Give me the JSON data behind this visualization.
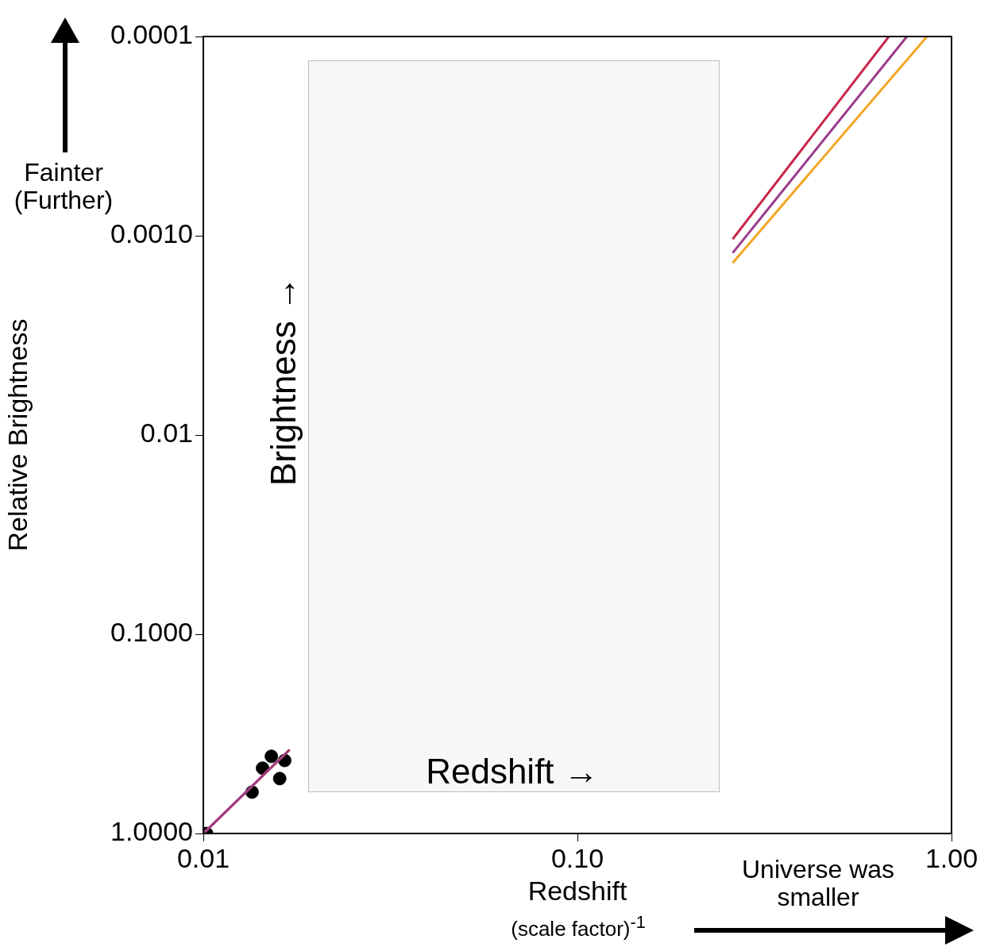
{
  "chart_data": {
    "type": "line",
    "xlabel": "Redshift",
    "ylabel": "Relative Brightness",
    "log": "xy",
    "xlim": [
      0.01,
      1
    ],
    "xticks": [
      0.01,
      {
        "value": 0.1,
        "label": "0.10"
      },
      {
        "value": 1,
        "label": "1.00"
      }
    ],
    "ylim": [
      1,
      0.0001
    ],
    "yticks": [
      0.0001,
      {
        "value": 0.001,
        "label": "0.0010"
      },
      0.01,
      {
        "value": 0.1,
        "label": "0.1000"
      },
      {
        "value": 1,
        "label": "1.0000"
      }
    ],
    "grid": false,
    "legend": false,
    "annotations": [
      "Fainter (Further)",
      "Universe was smaller",
      "(scale factor)$^{-1}$",
      "Brightness →",
      "Redshift →"
    ],
    "series": [
      {
        "color": "#9b3a8c",
        "x": [
          0.01,
          0.017,
          0.05,
          0.26,
          0.76
        ],
        "values": [
          1,
          0.38,
          null,
          0.00122,
          0.0001
        ]
      },
      {
        "color": "#f5a623",
        "x": [
          0.01,
          0.017,
          0.05,
          0.26,
          0.86
        ],
        "values": [
          1,
          0.38,
          null,
          0.00137,
          0.0001
        ]
      },
      {
        "color": "#c8254a",
        "x": [
          0.01,
          0.017,
          0.05,
          0.26,
          0.68
        ],
        "values": [
          1,
          0.38,
          null,
          0.00104,
          0.0001
        ]
      },
      {
        "type": "scatter",
        "color": "#000000",
        "marker": "circle",
        "x": [
          0.0102,
          0.0135,
          0.0144,
          0.0152,
          0.016,
          0.0165
        ],
        "values": [
          1,
          0.62,
          0.47,
          0.41,
          0.53,
          0.43
        ]
      }
    ]
  }
}
